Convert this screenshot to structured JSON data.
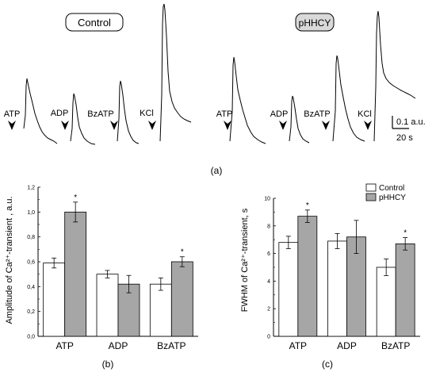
{
  "panel_a": {
    "label": "(a)",
    "groups": [
      {
        "name": "Control",
        "traces": [
          "ATP",
          "ADP",
          "BzATP",
          "KCl"
        ]
      },
      {
        "name": "pHHCY",
        "traces": [
          "ATP",
          "ADP",
          "BzATP",
          "KCl"
        ]
      }
    ],
    "scale_bar": {
      "y_label": "0.1 a.u.",
      "x_label": "20 s"
    }
  },
  "legend": {
    "control": "Control",
    "phhcy": "pHHCY"
  },
  "colors": {
    "control": "#ffffff",
    "phhcy": "#a6a6a6",
    "edge": "#000000"
  },
  "chart_data": [
    {
      "type": "bar",
      "panel_label": "(b)",
      "title": "",
      "xlabel": "",
      "ylabel": "Amplitude of Ca²⁺-transient , a.u.",
      "categories": [
        "ATP",
        "ADP",
        "BzATP"
      ],
      "ylim": [
        0,
        1.2
      ],
      "yticks": [
        "0,0",
        "0,2",
        "0,4",
        "0,6",
        "0,8",
        "1,0",
        "1,2"
      ],
      "series": [
        {
          "name": "Control",
          "values": [
            0.59,
            0.5,
            0.42
          ],
          "errors": [
            0.04,
            0.03,
            0.05
          ]
        },
        {
          "name": "pHHCY",
          "values": [
            1.0,
            0.42,
            0.6
          ],
          "errors": [
            0.08,
            0.07,
            0.04
          ]
        }
      ],
      "significance": [
        "*",
        "",
        "*"
      ]
    },
    {
      "type": "bar",
      "panel_label": "(c)",
      "title": "",
      "xlabel": "",
      "ylabel": "FWHM of Ca²⁺-transient, s",
      "categories": [
        "ATP",
        "ADP",
        "BzATP"
      ],
      "ylim": [
        0,
        10
      ],
      "yticks": [
        "0",
        "2",
        "4",
        "6",
        "8",
        "10"
      ],
      "legend_position": "top-right",
      "series": [
        {
          "name": "Control",
          "values": [
            6.8,
            6.9,
            5.0
          ],
          "errors": [
            0.45,
            0.55,
            0.6
          ]
        },
        {
          "name": "pHHCY",
          "values": [
            8.7,
            7.2,
            6.7
          ],
          "errors": [
            0.45,
            1.2,
            0.45
          ]
        }
      ],
      "significance": [
        "*",
        "",
        "*"
      ]
    }
  ]
}
